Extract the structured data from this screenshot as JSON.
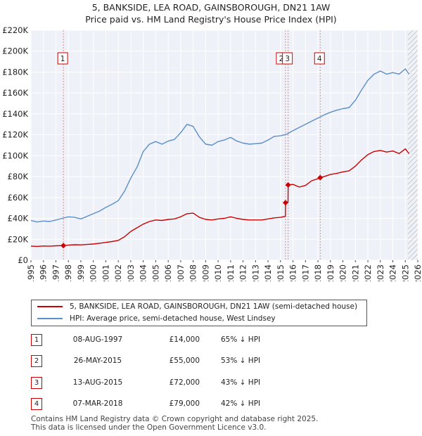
{
  "chart_data": {
    "type": "line",
    "title": "5, BANKSIDE, LEA ROAD, GAINSBOROUGH, DN21 1AW",
    "subtitle": "Price paid vs. HM Land Registry's House Price Index (HPI)",
    "xlabel": "",
    "ylabel": "",
    "xlim": [
      1995,
      2026
    ],
    "ylim": [
      0,
      220000
    ],
    "yticks": [
      0,
      20000,
      40000,
      60000,
      80000,
      100000,
      120000,
      140000,
      160000,
      180000,
      200000,
      220000
    ],
    "ytick_labels": [
      "£0",
      "£20K",
      "£40K",
      "£60K",
      "£80K",
      "£100K",
      "£120K",
      "£140K",
      "£160K",
      "£180K",
      "£200K",
      "£220K"
    ],
    "xticks": [
      1995,
      1996,
      1997,
      1998,
      1999,
      2000,
      2001,
      2002,
      2003,
      2004,
      2005,
      2006,
      2007,
      2008,
      2009,
      2010,
      2011,
      2012,
      2013,
      2014,
      2015,
      2016,
      2017,
      2018,
      2019,
      2020,
      2021,
      2022,
      2023,
      2024,
      2025,
      2026
    ],
    "grid": true,
    "hatch_from": 2025.2,
    "series": [
      {
        "name": "5, BANKSIDE, LEA ROAD, GAINSBOROUGH, DN21 1AW (semi-detached house)",
        "color": "#cc0000",
        "x": [
          1995.0,
          1995.5,
          1996.0,
          1996.5,
          1997.0,
          1997.6,
          1998.0,
          1998.5,
          1999.0,
          1999.5,
          2000.0,
          2000.5,
          2001.0,
          2001.5,
          2002.0,
          2002.5,
          2003.0,
          2003.5,
          2004.0,
          2004.5,
          2005.0,
          2005.5,
          2006.0,
          2006.5,
          2007.0,
          2007.5,
          2008.0,
          2008.5,
          2009.0,
          2009.5,
          2010.0,
          2010.5,
          2011.0,
          2011.5,
          2012.0,
          2012.5,
          2013.0,
          2013.5,
          2014.0,
          2014.5,
          2015.0,
          2015.39,
          2015.4,
          2015.6,
          2015.61,
          2016.0,
          2016.5,
          2017.0,
          2017.5,
          2018.0,
          2018.18,
          2018.5,
          2019.0,
          2019.5,
          2020.0,
          2020.5,
          2021.0,
          2021.5,
          2022.0,
          2022.5,
          2023.0,
          2023.5,
          2024.0,
          2024.5,
          2025.0,
          2025.3
        ],
        "y": [
          13500,
          13200,
          13600,
          13400,
          13800,
          14000,
          14400,
          14800,
          14700,
          15100,
          15500,
          16200,
          17000,
          17800,
          19000,
          22500,
          27500,
          31000,
          34500,
          37000,
          38500,
          38000,
          39000,
          39500,
          41500,
          44500,
          45000,
          41000,
          39000,
          38500,
          39500,
          40000,
          41500,
          40000,
          39000,
          38500,
          38500,
          38500,
          39500,
          40500,
          41000,
          42000,
          55000,
          55500,
          72000,
          72500,
          70000,
          71500,
          76000,
          78000,
          79000,
          80000,
          82000,
          83000,
          84500,
          85500,
          90000,
          96000,
          101000,
          104000,
          105000,
          103500,
          104500,
          102000,
          106500,
          102000
        ]
      },
      {
        "name": "HPI: Average price, semi-detached house, West Lindsey",
        "color": "#5b8ec8",
        "x": [
          1995.0,
          1995.5,
          1996.0,
          1996.5,
          1997.0,
          1997.5,
          1998.0,
          1998.5,
          1999.0,
          1999.5,
          2000.0,
          2000.5,
          2001.0,
          2001.5,
          2002.0,
          2002.5,
          2003.0,
          2003.5,
          2004.0,
          2004.5,
          2005.0,
          2005.5,
          2006.0,
          2006.5,
          2007.0,
          2007.5,
          2008.0,
          2008.5,
          2009.0,
          2009.5,
          2010.0,
          2010.5,
          2011.0,
          2011.5,
          2012.0,
          2012.5,
          2013.0,
          2013.5,
          2014.0,
          2014.5,
          2015.0,
          2015.5,
          2016.0,
          2016.5,
          2017.0,
          2017.5,
          2018.0,
          2018.5,
          2019.0,
          2019.5,
          2020.0,
          2020.5,
          2021.0,
          2021.5,
          2022.0,
          2022.5,
          2023.0,
          2023.5,
          2024.0,
          2024.5,
          2025.0,
          2025.3
        ],
        "y": [
          38000,
          36500,
          37500,
          37000,
          38500,
          40000,
          41500,
          41000,
          39500,
          42000,
          44500,
          47000,
          50500,
          53500,
          57000,
          66000,
          78500,
          89000,
          104000,
          111000,
          113500,
          111000,
          114000,
          115500,
          122000,
          130000,
          128000,
          118000,
          111000,
          110000,
          113500,
          115000,
          117500,
          114000,
          112000,
          111000,
          111500,
          112000,
          115000,
          118500,
          119000,
          120500,
          124000,
          127000,
          130000,
          133000,
          136000,
          139000,
          141500,
          143500,
          145000,
          146000,
          153000,
          163000,
          172000,
          178000,
          181000,
          178000,
          179500,
          178000,
          183000,
          178000
        ]
      }
    ],
    "sales": [
      {
        "label": "1",
        "date": "08-AUG-1997",
        "x": 1997.6,
        "price": 14000,
        "price_text": "£14,000",
        "hpi_text": "65% ↓ HPI"
      },
      {
        "label": "2",
        "date": "26-MAY-2015",
        "x": 2015.4,
        "price": 55000,
        "price_text": "£55,000",
        "hpi_text": "53% ↓ HPI"
      },
      {
        "label": "3",
        "date": "13-AUG-2015",
        "x": 2015.61,
        "price": 72000,
        "price_text": "£72,000",
        "hpi_text": "43% ↓ HPI"
      },
      {
        "label": "4",
        "date": "07-MAR-2018",
        "x": 2018.18,
        "price": 79000,
        "price_text": "£79,000",
        "hpi_text": "42% ↓ HPI"
      }
    ]
  },
  "legend": {
    "red_label": "5, BANKSIDE, LEA ROAD, GAINSBOROUGH, DN21 1AW (semi-detached house)",
    "blue_label": "HPI: Average price, semi-detached house, West Lindsey"
  },
  "footer": {
    "line1": "Contains HM Land Registry data © Crown copyright and database right 2025.",
    "line2": "This data is licensed under the Open Government Licence v3.0."
  }
}
